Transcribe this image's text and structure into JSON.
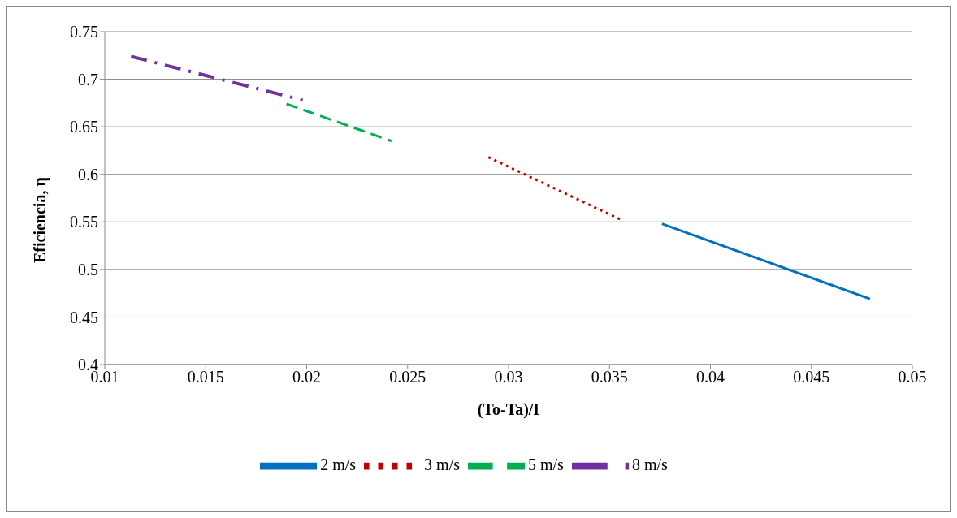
{
  "chart_data": {
    "type": "line",
    "xlabel": "(To-Ta)/I",
    "ylabel": "Eficiencia, η",
    "xlim": [
      0.01,
      0.05
    ],
    "xticks": [
      0.01,
      0.015,
      0.02,
      0.025,
      0.03,
      0.035,
      0.04,
      0.045,
      0.05
    ],
    "ylim": [
      0.4,
      0.75
    ],
    "yticks": [
      0.4,
      0.45,
      0.5,
      0.55,
      0.6,
      0.65,
      0.7,
      0.75
    ],
    "grid": "y",
    "legend": "bottom",
    "marker": "none",
    "series": [
      {
        "name": "2 m/s",
        "color": "#0070c0",
        "line_style": "solid",
        "x": [
          0.0376,
          0.0479
        ],
        "values": [
          0.548,
          0.469
        ]
      },
      {
        "name": "3 m/s",
        "color": "#c00000",
        "line_style": "dotted",
        "x": [
          0.029,
          0.0356
        ],
        "values": [
          0.618,
          0.552
        ]
      },
      {
        "name": "5 m/s",
        "color": "#00b050",
        "line_style": "dashed",
        "x": [
          0.019,
          0.0242
        ],
        "values": [
          0.674,
          0.635
        ]
      },
      {
        "name": "8 m/s",
        "color": "#7030a0",
        "line_style": "dashdot",
        "x": [
          0.0113,
          0.0198
        ],
        "values": [
          0.724,
          0.678
        ]
      }
    ]
  }
}
